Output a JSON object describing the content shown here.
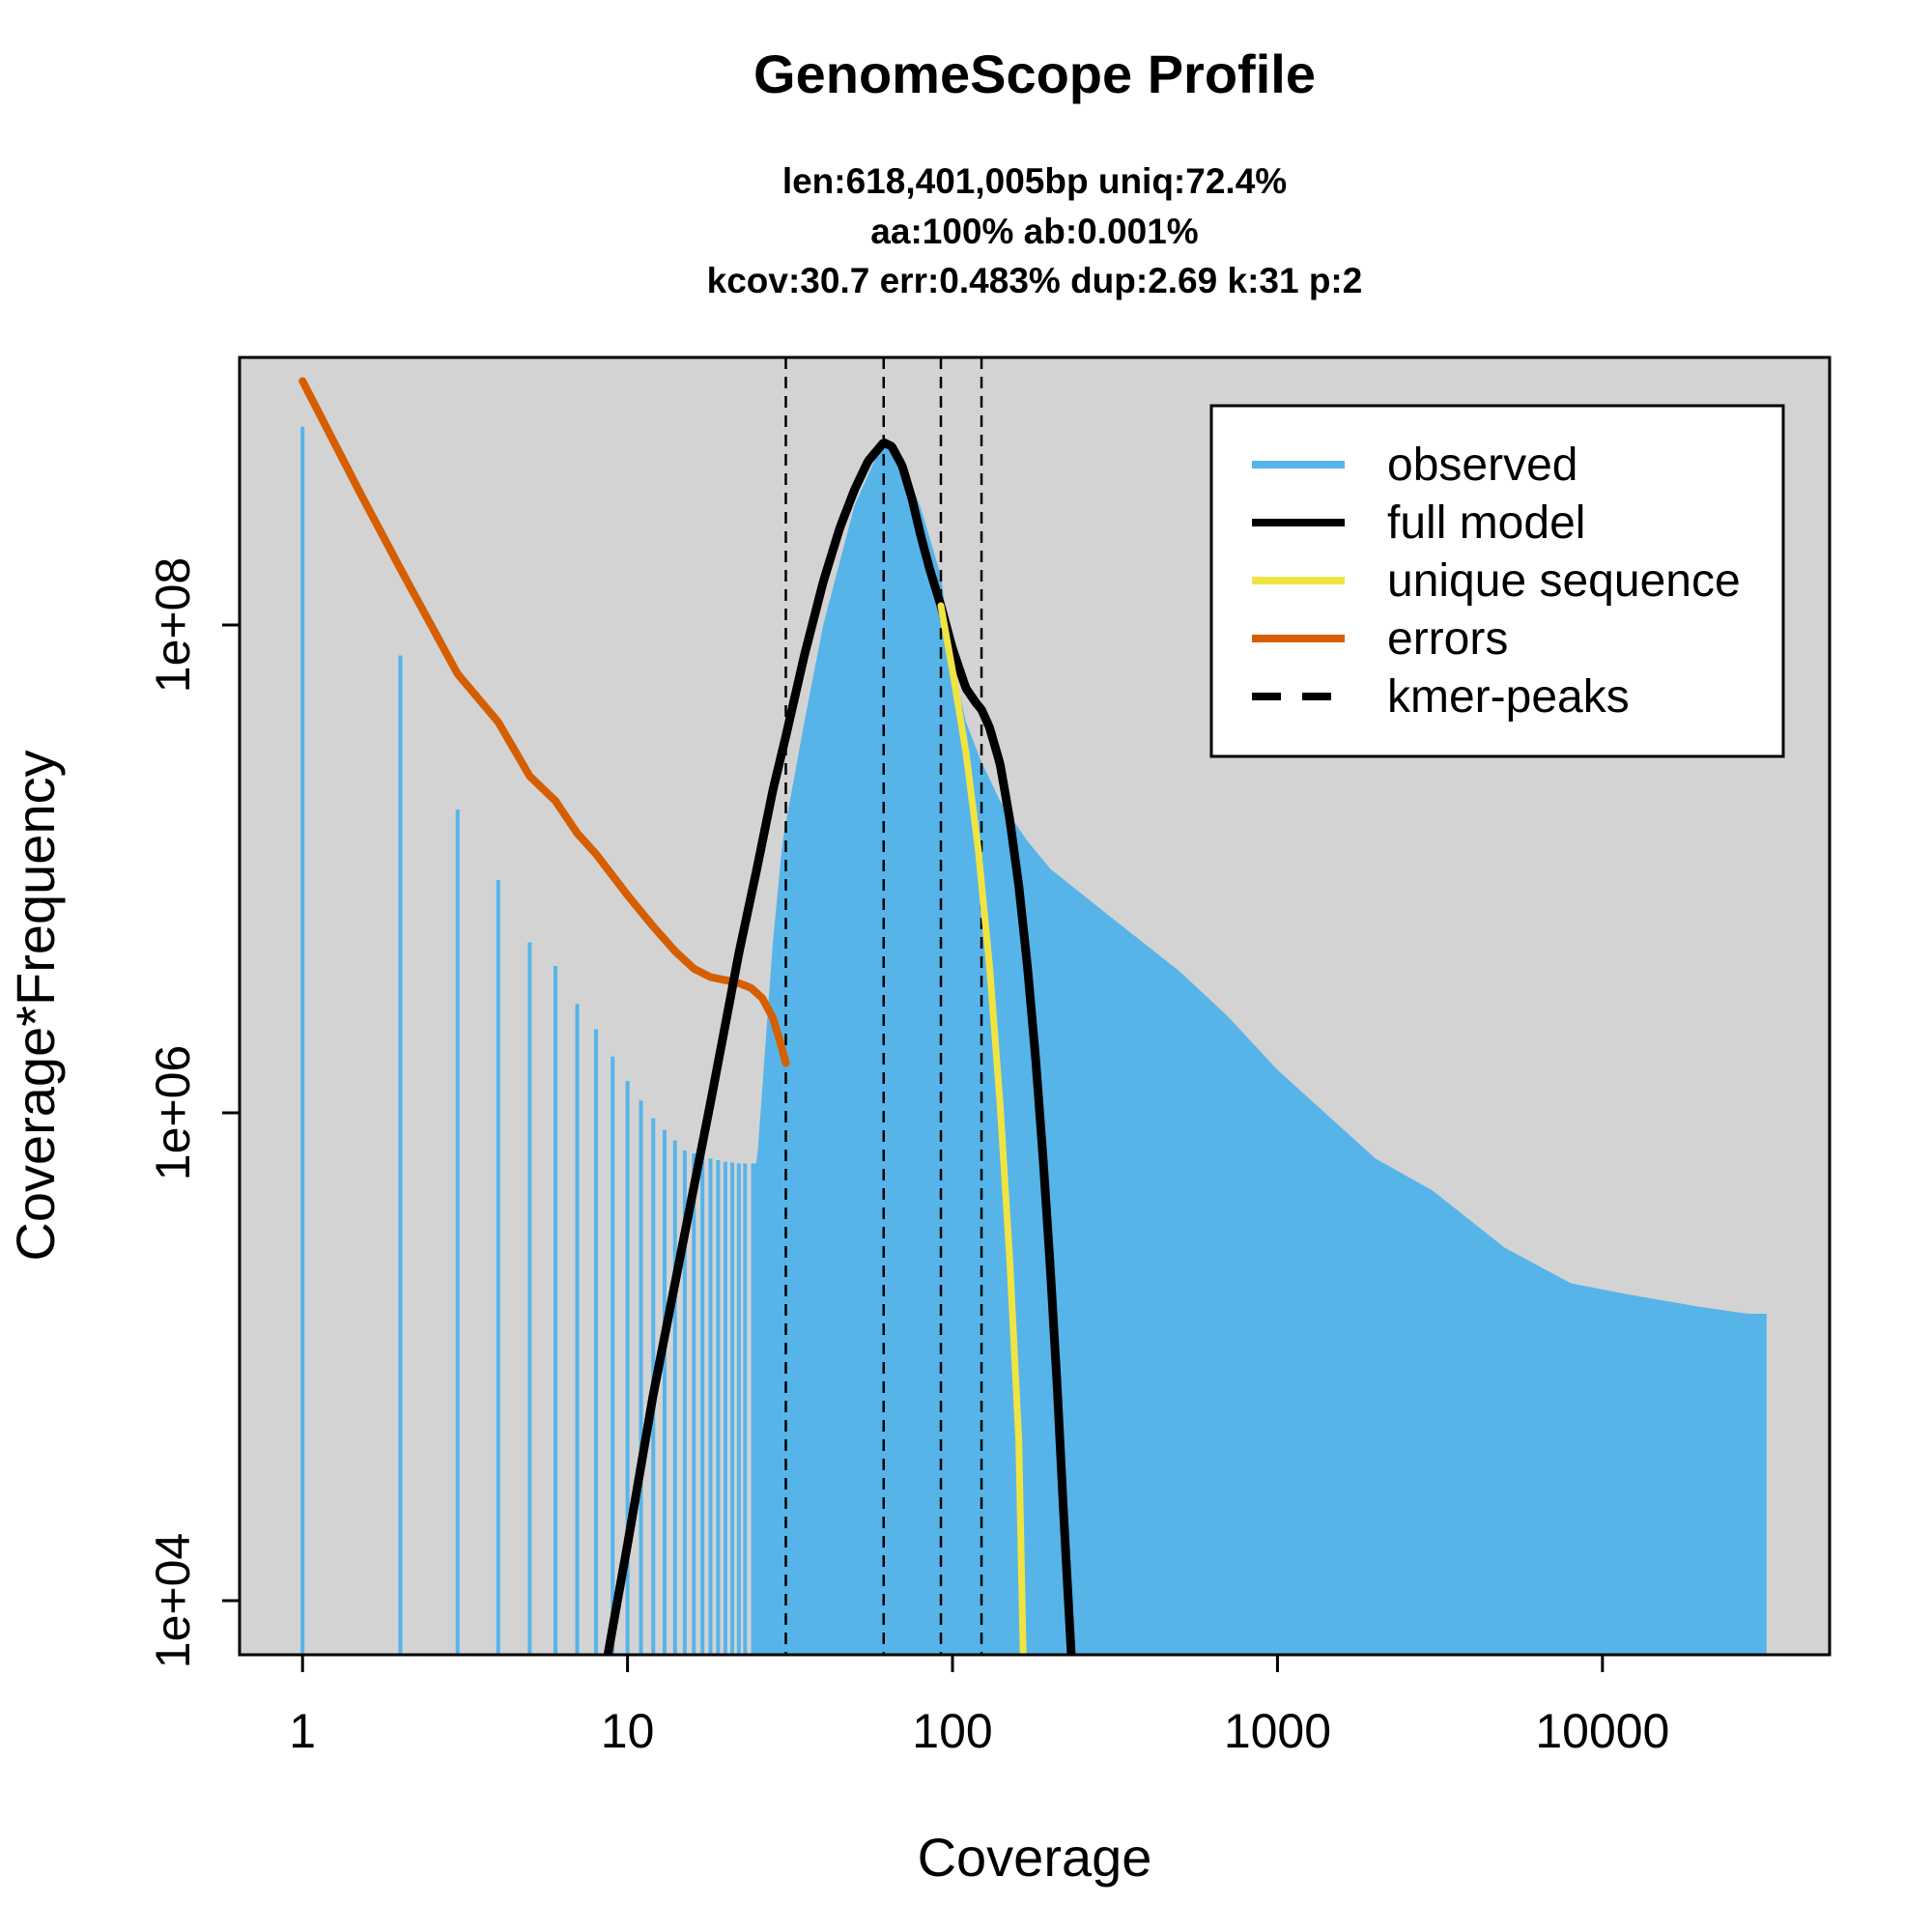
{
  "chart_data": {
    "type": "area",
    "title": "GenomeScope Profile",
    "subtitle_lines": [
      "len:618,401,005bp uniq:72.4%",
      "aa:100% ab:0.001%",
      "kcov:30.7 err:0.483%  dup:2.69  k:31 p:2"
    ],
    "xlabel": "Coverage",
    "ylabel": "Coverage*Frequency",
    "x_scale": "log",
    "y_scale": "log",
    "xlim": [
      0.64,
      50000
    ],
    "ylim": [
      6000,
      1250000000.0
    ],
    "x_ticks": [
      1,
      10,
      100,
      1000,
      10000
    ],
    "x_tick_labels": [
      "1",
      "10",
      "100",
      "1000",
      "10000"
    ],
    "y_ticks": [
      10000,
      1000000,
      100000000
    ],
    "y_tick_labels": [
      "1e+04",
      "1e+06",
      "1e+08"
    ],
    "background_color": "#d3d3d3",
    "legend": {
      "position": "top-right",
      "entries": [
        {
          "label": "observed",
          "color": "#56b4e9",
          "style": "solid"
        },
        {
          "label": "full model",
          "color": "#000000",
          "style": "solid"
        },
        {
          "label": "unique sequence",
          "color": "#f0e442",
          "style": "solid"
        },
        {
          "label": "errors",
          "color": "#d55e00",
          "style": "solid"
        },
        {
          "label": "kmer-peaks",
          "color": "#000000",
          "style": "dashed"
        }
      ]
    },
    "kmer_peaks": [
      30.7,
      61.4,
      92.1,
      122.8
    ],
    "series": [
      {
        "name": "observed",
        "color": "#56b4e9",
        "style": "histogram",
        "x": [
          1,
          2,
          3,
          4,
          5,
          6,
          7,
          8,
          9,
          10,
          12,
          15,
          18,
          20,
          22,
          25,
          28,
          30,
          35,
          40,
          50,
          61,
          70,
          80,
          92,
          100,
          110,
          122,
          140,
          170,
          200,
          300,
          500,
          700,
          1000,
          2000,
          3000,
          5000,
          8000,
          12000,
          20000,
          28000,
          32000
        ],
        "y": [
          650000000,
          75000000,
          17500000,
          9000000,
          5000000,
          4000000,
          2800000,
          2200000,
          1700000,
          1350000,
          950000,
          700000,
          650000,
          630000,
          620000,
          620000,
          5000000,
          13000000,
          40000000,
          100000000,
          310000000,
          560000000,
          470000000,
          300000000,
          160000000,
          70000000,
          40000000,
          28000000,
          19000000,
          13000000,
          10000000,
          6500000,
          3800000,
          2500000,
          1500000,
          650000,
          480000,
          280000,
          200000,
          180000,
          160000,
          150000,
          150000
        ]
      },
      {
        "name": "full model",
        "color": "#000000",
        "style": "solid",
        "x": [
          8.7,
          10,
          12,
          15,
          18,
          20,
          22,
          25,
          28,
          30.7,
          35,
          40,
          45,
          50,
          55,
          61.4,
          65,
          70,
          75,
          80,
          85,
          92.1,
          100,
          110,
          118,
          122.8,
          130,
          140,
          150,
          160,
          170,
          180,
          190,
          200,
          210,
          220,
          232
        ],
        "y": [
          6000,
          17000,
          70000,
          320000,
          1100000,
          2300000,
          4500000,
          10000000,
          21000000,
          35000000,
          75000000,
          150000000,
          250000000,
          360000000,
          470000000,
          560000000,
          540000000,
          450000000,
          330000000,
          230000000,
          170000000,
          120000000,
          80000000,
          55000000,
          48000000,
          45000000,
          38000000,
          27000000,
          16000000,
          8500000,
          4000000,
          1700000,
          650000,
          230000,
          75000,
          22000,
          6000
        ]
      },
      {
        "name": "unique sequence",
        "color": "#f0e442",
        "style": "solid",
        "x": [
          92.1,
          100,
          110,
          120,
          130,
          140,
          150,
          160,
          165
        ],
        "y": [
          120000000,
          65000000,
          30000000,
          12000000,
          4000000,
          1100000,
          250000,
          45000,
          6000
        ]
      },
      {
        "name": "errors",
        "color": "#d55e00",
        "style": "solid",
        "x": [
          1,
          1.5,
          2,
          3,
          4,
          5,
          6,
          7,
          8,
          10,
          12,
          14,
          16,
          18,
          20,
          22,
          24,
          26,
          28,
          29.5,
          30.7
        ],
        "y": [
          1000000000,
          350000000,
          170000000,
          63000000,
          40000000,
          24000000,
          19000000,
          14000000,
          11500000,
          7800000,
          5800000,
          4600000,
          3900000,
          3600000,
          3500000,
          3400000,
          3250000,
          2950000,
          2450000,
          1950000,
          1600000
        ]
      }
    ]
  }
}
